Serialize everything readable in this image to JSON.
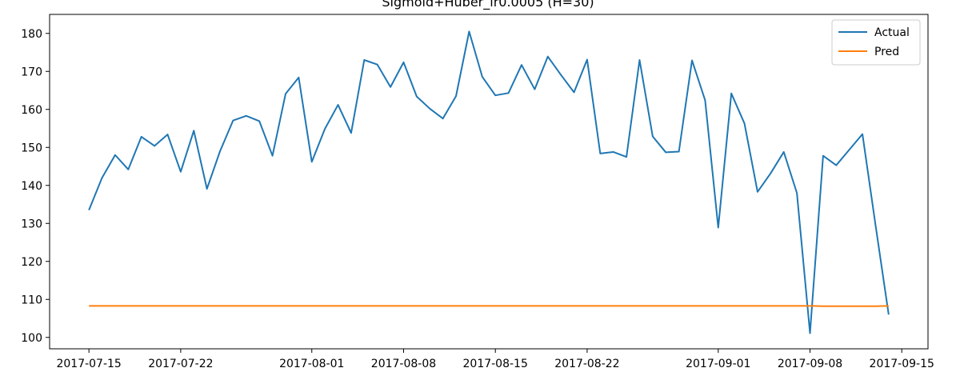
{
  "chart_data": {
    "type": "line",
    "title": "Sigmoid+Huber_lr0.0005 (H=30)",
    "xlabel": "",
    "ylabel": "",
    "xlim": [
      "2017-07-12",
      "2017-09-17"
    ],
    "ylim": [
      97,
      185
    ],
    "x_ticks": [
      "2017-07-15",
      "2017-07-22",
      "2017-08-01",
      "2017-08-08",
      "2017-08-15",
      "2017-08-22",
      "2017-09-01",
      "2017-09-08",
      "2017-09-15"
    ],
    "y_ticks": [
      100,
      110,
      120,
      130,
      140,
      150,
      160,
      170,
      180
    ],
    "legend_position": "top-right",
    "grid": false,
    "x": [
      "2017-07-15",
      "2017-07-16",
      "2017-07-17",
      "2017-07-18",
      "2017-07-19",
      "2017-07-20",
      "2017-07-21",
      "2017-07-22",
      "2017-07-23",
      "2017-07-24",
      "2017-07-25",
      "2017-07-26",
      "2017-07-27",
      "2017-07-28",
      "2017-07-29",
      "2017-07-30",
      "2017-07-31",
      "2017-08-01",
      "2017-08-02",
      "2017-08-03",
      "2017-08-04",
      "2017-08-05",
      "2017-08-06",
      "2017-08-07",
      "2017-08-08",
      "2017-08-09",
      "2017-08-10",
      "2017-08-11",
      "2017-08-12",
      "2017-08-13",
      "2017-08-14",
      "2017-08-15",
      "2017-08-16",
      "2017-08-17",
      "2017-08-18",
      "2017-08-19",
      "2017-08-20",
      "2017-08-21",
      "2017-08-22",
      "2017-08-23",
      "2017-08-24",
      "2017-08-25",
      "2017-08-26",
      "2017-08-27",
      "2017-08-28",
      "2017-08-29",
      "2017-08-30",
      "2017-08-31",
      "2017-09-01",
      "2017-09-02",
      "2017-09-03",
      "2017-09-04",
      "2017-09-05",
      "2017-09-06",
      "2017-09-07",
      "2017-09-08",
      "2017-09-09",
      "2017-09-10",
      "2017-09-11",
      "2017-09-12",
      "2017-09-13",
      "2017-09-14"
    ],
    "series": [
      {
        "name": "Actual",
        "color": "#1f77b4",
        "values": [
          133.5,
          142,
          148,
          144.2,
          152.8,
          150.4,
          153.4,
          143.6,
          154.4,
          139.1,
          149,
          157.1,
          158.3,
          156.9,
          147.8,
          164.1,
          168.4,
          146.2,
          154.9,
          161.2,
          153.8,
          173,
          171.8,
          165.9,
          172.4,
          163.4,
          160.2,
          157.6,
          163.5,
          180.5,
          168.6,
          163.7,
          164.3,
          171.7,
          165.3,
          173.9,
          169.1,
          164.5,
          173.1,
          148.4,
          148.8,
          147.5,
          173,
          152.9,
          148.7,
          148.9,
          172.9,
          162.4,
          128.9,
          164.2,
          156.3,
          138.3,
          143.2,
          148.8,
          138,
          101.1,
          147.8,
          145.3,
          149.4,
          153.5,
          129.5,
          106
        ]
      },
      {
        "name": "Pred",
        "color": "#ff7f0e",
        "values": [
          108.3,
          108.3,
          108.3,
          108.3,
          108.3,
          108.3,
          108.3,
          108.3,
          108.3,
          108.3,
          108.3,
          108.3,
          108.3,
          108.3,
          108.3,
          108.3,
          108.3,
          108.3,
          108.3,
          108.3,
          108.3,
          108.3,
          108.3,
          108.3,
          108.3,
          108.3,
          108.3,
          108.3,
          108.3,
          108.3,
          108.3,
          108.3,
          108.3,
          108.3,
          108.3,
          108.3,
          108.3,
          108.3,
          108.3,
          108.3,
          108.3,
          108.3,
          108.3,
          108.3,
          108.3,
          108.3,
          108.3,
          108.3,
          108.3,
          108.3,
          108.3,
          108.3,
          108.3,
          108.3,
          108.3,
          108.3,
          108.2,
          108.2,
          108.2,
          108.2,
          108.2,
          108.3
        ]
      }
    ]
  }
}
